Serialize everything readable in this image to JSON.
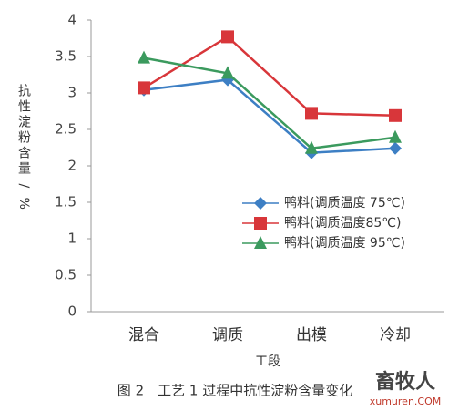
{
  "chart_data": {
    "type": "line",
    "categories": [
      "混合",
      "调质",
      "出模",
      "冷却"
    ],
    "x_label": "工段",
    "y_label": "抗性淀粉含量 / %",
    "caption": "图 2　工艺 1 过程中抗性淀粉含量变化",
    "watermark": {
      "name": "畜牧人",
      "site": "xumuren.COM"
    },
    "ylim": [
      0,
      4
    ],
    "yticks": [
      0,
      0.5,
      1,
      1.5,
      2,
      2.5,
      3,
      3.5,
      4
    ],
    "series": [
      {
        "name": "鸭料(调质温度 75℃)",
        "color": "#3d7fc4",
        "marker": "diamond",
        "values": [
          3.04,
          3.18,
          2.18,
          2.24
        ]
      },
      {
        "name": "鸭料(调质温度85℃)",
        "color": "#d8363a",
        "marker": "square",
        "values": [
          3.07,
          3.77,
          2.72,
          2.69
        ]
      },
      {
        "name": "鸭料(调质温度 95℃)",
        "color": "#3b9a5e",
        "marker": "triangle",
        "values": [
          3.48,
          3.27,
          2.24,
          2.39
        ]
      }
    ]
  }
}
